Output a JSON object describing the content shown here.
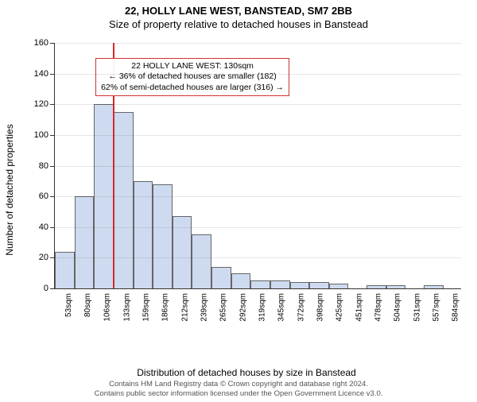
{
  "title_line1": "22, HOLLY LANE WEST, BANSTEAD, SM7 2BB",
  "title_line2": "Size of property relative to detached houses in Banstead",
  "y_axis_label": "Number of detached properties",
  "x_axis_label": "Distribution of detached houses by size in Banstead",
  "footer_line1": "Contains HM Land Registry data © Crown copyright and database right 2024.",
  "footer_line2": "Contains public sector information licensed under the Open Government Licence v3.0.",
  "chart": {
    "type": "histogram",
    "y_max": 160,
    "y_tick_step": 20,
    "background_color": "#ffffff",
    "bar_fill": "#cddaf0",
    "bar_stroke": "#666666",
    "grid_color": "#e0e0e0",
    "ref_line_color": "#d62728",
    "ref_line_x_category_index": 3,
    "categories": [
      "53sqm",
      "80sqm",
      "106sqm",
      "133sqm",
      "159sqm",
      "186sqm",
      "212sqm",
      "239sqm",
      "265sqm",
      "292sqm",
      "319sqm",
      "345sqm",
      "372sqm",
      "398sqm",
      "425sqm",
      "451sqm",
      "478sqm",
      "504sqm",
      "531sqm",
      "557sqm",
      "584sqm"
    ],
    "values": [
      24,
      60,
      120,
      115,
      70,
      68,
      47,
      35,
      14,
      10,
      5,
      5,
      4,
      4,
      3,
      0,
      2,
      2,
      0,
      2,
      0
    ]
  },
  "info_box": {
    "line1": "22 HOLLY LANE WEST: 130sqm",
    "line2": "← 36% of detached houses are smaller (182)",
    "line3": "62% of semi-detached houses are larger (316) →",
    "border_color": "#cc3333",
    "left_pct": 10,
    "top_pct": 6
  }
}
